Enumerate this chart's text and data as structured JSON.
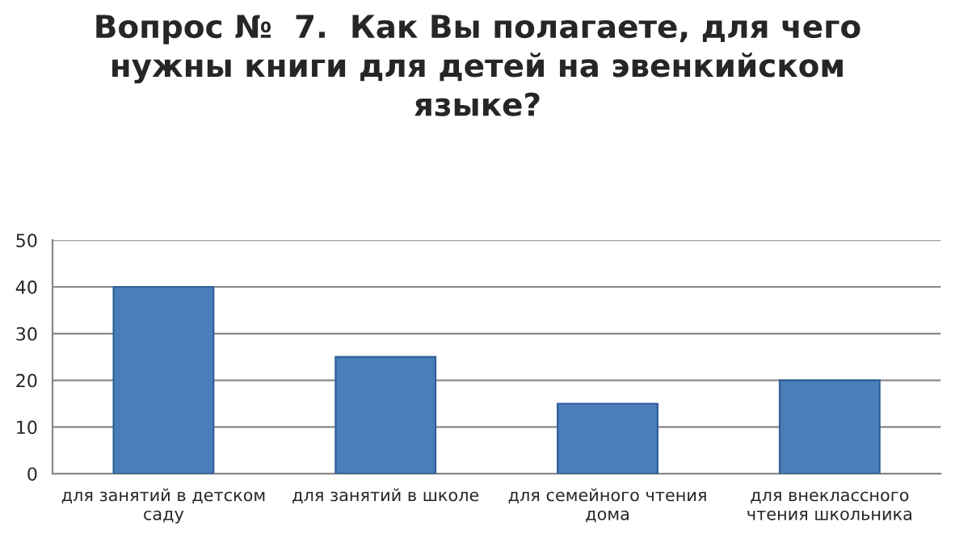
{
  "chart_data": {
    "type": "bar",
    "title": "Вопрос №  7.  Как Вы полагаете, для чего\nнужны книги для детей на эвенкийском\nязыке?",
    "categories": [
      "для занятий в детском\nсаду",
      "для занятий в школе",
      "для семейного чтения\nдома",
      "для внеклассного\nчтения школьника"
    ],
    "values": [
      40,
      25,
      15,
      20
    ],
    "color": "#4a7ebb",
    "ylim": [
      0,
      50
    ],
    "yticks": [
      0,
      10,
      20,
      30,
      40,
      50
    ],
    "grid": "y"
  }
}
